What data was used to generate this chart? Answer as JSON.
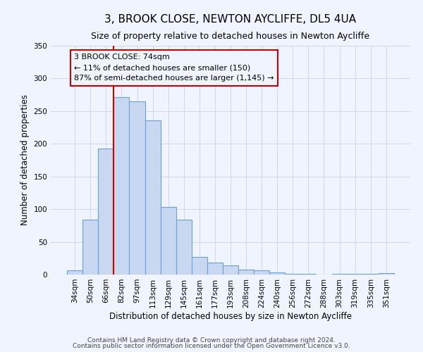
{
  "title": "3, BROOK CLOSE, NEWTON AYCLIFFE, DL5 4UA",
  "subtitle": "Size of property relative to detached houses in Newton Aycliffe",
  "xlabel": "Distribution of detached houses by size in Newton Aycliffe",
  "ylabel": "Number of detached properties",
  "categories": [
    "34sqm",
    "50sqm",
    "66sqm",
    "82sqm",
    "97sqm",
    "113sqm",
    "129sqm",
    "145sqm",
    "161sqm",
    "177sqm",
    "193sqm",
    "208sqm",
    "224sqm",
    "240sqm",
    "256sqm",
    "272sqm",
    "288sqm",
    "303sqm",
    "319sqm",
    "335sqm",
    "351sqm"
  ],
  "values": [
    6,
    84,
    193,
    271,
    265,
    236,
    103,
    84,
    27,
    18,
    14,
    8,
    6,
    3,
    1,
    1,
    0,
    1,
    1,
    1,
    2
  ],
  "bar_color": "#c8d8f0",
  "bar_edge_color": "#6a9fd8",
  "ylim": [
    0,
    350
  ],
  "yticks": [
    0,
    50,
    100,
    150,
    200,
    250,
    300,
    350
  ],
  "marker_label": "3 BROOK CLOSE: 74sqm",
  "annotation_line1": "← 11% of detached houses are smaller (150)",
  "annotation_line2": "87% of semi-detached houses are larger (1,145) →",
  "footer_line1": "Contains HM Land Registry data © Crown copyright and database right 2024.",
  "footer_line2": "Contains public sector information licensed under the Open Government Licence v3.0.",
  "bg_color": "#f0f4ff",
  "grid_color": "#d0d8e8",
  "title_fontsize": 11,
  "subtitle_fontsize": 9,
  "axis_label_fontsize": 8.5,
  "tick_fontsize": 7.5,
  "annotation_fontsize": 8,
  "footer_fontsize": 6.5,
  "red_line_color": "#cc0000",
  "red_line_x": 2.5
}
